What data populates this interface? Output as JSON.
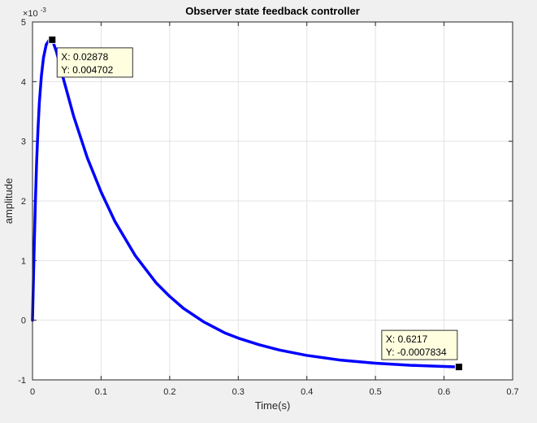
{
  "figure": {
    "background": "#f0f0f0",
    "axes_background": "#ffffff"
  },
  "chart_data": {
    "type": "line",
    "title": "Observer state feedback controller",
    "xlabel": "Time(s)",
    "ylabel": "amplitude",
    "y_exponent_label": "×10",
    "y_exponent_power": "-3",
    "xlim": [
      0,
      0.7
    ],
    "ylim": [
      -1,
      5
    ],
    "y_scale_note": "y values in units of 10^-3",
    "grid": true,
    "x_ticks": [
      0,
      0.1,
      0.2,
      0.3,
      0.4,
      0.5,
      0.6,
      0.7
    ],
    "x_tick_labels": [
      "0",
      "0.1",
      "0.2",
      "0.3",
      "0.4",
      "0.5",
      "0.6",
      "0.7"
    ],
    "y_ticks": [
      -1,
      0,
      1,
      2,
      3,
      4,
      5
    ],
    "y_tick_labels": [
      "-1",
      "0",
      "1",
      "2",
      "3",
      "4",
      "5"
    ],
    "series": [
      {
        "color": "#0000ff",
        "x": [
          0,
          0.002,
          0.004,
          0.006,
          0.008,
          0.01,
          0.013,
          0.016,
          0.02,
          0.024,
          0.02878,
          0.035,
          0.045,
          0.06,
          0.08,
          0.1,
          0.12,
          0.15,
          0.18,
          0.2,
          0.22,
          0.25,
          0.28,
          0.3,
          0.33,
          0.36,
          0.4,
          0.45,
          0.5,
          0.55,
          0.6,
          0.6217
        ],
        "y": [
          0,
          1.0,
          1.9,
          2.65,
          3.2,
          3.65,
          4.1,
          4.4,
          4.62,
          4.69,
          4.702,
          4.5,
          4.05,
          3.42,
          2.72,
          2.15,
          1.66,
          1.08,
          0.63,
          0.4,
          0.2,
          -0.03,
          -0.21,
          -0.3,
          -0.41,
          -0.5,
          -0.59,
          -0.67,
          -0.72,
          -0.755,
          -0.775,
          -0.7834
        ]
      }
    ],
    "datatips": [
      {
        "x": 0.02878,
        "y": 4.702,
        "x_text": "X: 0.02878",
        "y_text": "Y: 0.004702",
        "placement": "right"
      },
      {
        "x": 0.6217,
        "y": -0.7834,
        "x_text": "X: 0.6217",
        "y_text": "Y: -0.0007834",
        "placement": "left"
      }
    ]
  }
}
